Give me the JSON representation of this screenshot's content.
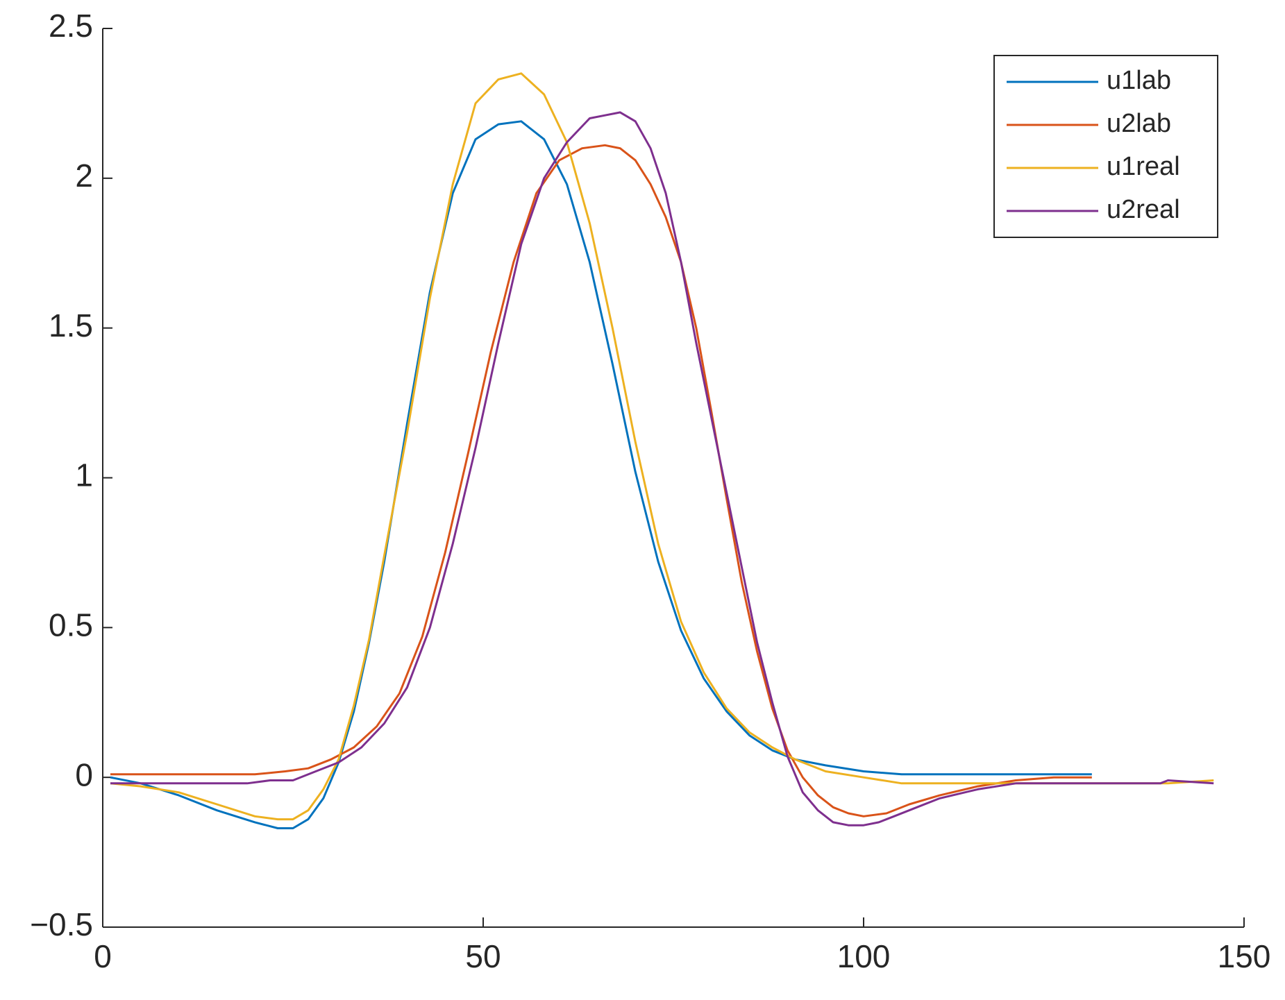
{
  "chart_data": {
    "type": "line",
    "xlim": [
      0,
      150
    ],
    "xticks": [
      0,
      50,
      100,
      150
    ],
    "ylim": [
      -0.5,
      2.5
    ],
    "yticks": [
      {
        "value": -0.5,
        "label": "−0.5"
      },
      0,
      0.5,
      1,
      1.5,
      2,
      2.5
    ],
    "legend": "upper right",
    "series": [
      {
        "name": "u1lab",
        "color": "#0072BD",
        "x": [
          1,
          5,
          10,
          15,
          20,
          23,
          25,
          27,
          29,
          31,
          33,
          35,
          37,
          40,
          43,
          46,
          49,
          52,
          55,
          58,
          61,
          64,
          67,
          70,
          73,
          76,
          79,
          82,
          85,
          88,
          91,
          95,
          100,
          105,
          110,
          120,
          130
        ],
        "values": [
          0,
          -0.02,
          -0.06,
          -0.11,
          -0.15,
          -0.17,
          -0.17,
          -0.14,
          -0.07,
          0.05,
          0.22,
          0.45,
          0.72,
          1.18,
          1.62,
          1.95,
          2.13,
          2.18,
          2.19,
          2.13,
          1.98,
          1.72,
          1.38,
          1.02,
          0.72,
          0.49,
          0.33,
          0.22,
          0.14,
          0.09,
          0.06,
          0.04,
          0.02,
          0.01,
          0.01,
          0.01,
          0.01
        ]
      },
      {
        "name": "u2lab",
        "color": "#D95319",
        "x": [
          1,
          10,
          20,
          24,
          27,
          30,
          33,
          36,
          39,
          42,
          45,
          48,
          51,
          54,
          57,
          60,
          63,
          66,
          68,
          70,
          72,
          74,
          76,
          78,
          80,
          82,
          84,
          86,
          88,
          90,
          92,
          94,
          96,
          98,
          100,
          103,
          106,
          110,
          115,
          120,
          125,
          130
        ],
        "values": [
          0.01,
          0.01,
          0.01,
          0.02,
          0.03,
          0.06,
          0.1,
          0.17,
          0.28,
          0.47,
          0.75,
          1.08,
          1.42,
          1.72,
          1.95,
          2.06,
          2.1,
          2.11,
          2.1,
          2.06,
          1.98,
          1.87,
          1.72,
          1.5,
          1.22,
          0.93,
          0.65,
          0.42,
          0.23,
          0.09,
          0,
          -0.06,
          -0.1,
          -0.12,
          -0.13,
          -0.12,
          -0.09,
          -0.06,
          -0.03,
          -0.01,
          0,
          0
        ]
      },
      {
        "name": "u1real",
        "color": "#EDB120",
        "x": [
          1,
          5,
          10,
          15,
          20,
          23,
          25,
          27,
          29,
          31,
          33,
          35,
          37,
          40,
          43,
          46,
          49,
          52,
          55,
          58,
          61,
          64,
          67,
          70,
          73,
          76,
          79,
          82,
          85,
          88,
          91,
          95,
          100,
          105,
          110,
          120,
          130,
          140,
          146
        ],
        "values": [
          -0.02,
          -0.03,
          -0.05,
          -0.09,
          -0.13,
          -0.14,
          -0.14,
          -0.11,
          -0.04,
          0.06,
          0.24,
          0.46,
          0.74,
          1.15,
          1.6,
          1.98,
          2.25,
          2.33,
          2.35,
          2.28,
          2.12,
          1.85,
          1.5,
          1.12,
          0.78,
          0.52,
          0.35,
          0.23,
          0.15,
          0.1,
          0.06,
          0.02,
          0,
          -0.02,
          -0.02,
          -0.02,
          -0.02,
          -0.02,
          -0.01
        ]
      },
      {
        "name": "u2real",
        "color": "#7E2F8E",
        "x": [
          1,
          10,
          19,
          22,
          25,
          28,
          31,
          34,
          37,
          40,
          43,
          46,
          49,
          52,
          55,
          58,
          61,
          64,
          66,
          68,
          70,
          72,
          74,
          76,
          78,
          80,
          82,
          84,
          86,
          88,
          90,
          92,
          94,
          96,
          98,
          100,
          102,
          104,
          107,
          110,
          115,
          120,
          130,
          139,
          140,
          146
        ],
        "values": [
          -0.02,
          -0.02,
          -0.02,
          -0.01,
          -0.01,
          0.02,
          0.05,
          0.1,
          0.18,
          0.3,
          0.5,
          0.78,
          1.1,
          1.45,
          1.78,
          2.0,
          2.12,
          2.2,
          2.21,
          2.22,
          2.19,
          2.1,
          1.95,
          1.72,
          1.45,
          1.2,
          0.95,
          0.7,
          0.45,
          0.25,
          0.07,
          -0.05,
          -0.11,
          -0.15,
          -0.16,
          -0.16,
          -0.15,
          -0.13,
          -0.1,
          -0.07,
          -0.04,
          -0.02,
          -0.02,
          -0.02,
          -0.01,
          -0.02
        ]
      }
    ]
  }
}
